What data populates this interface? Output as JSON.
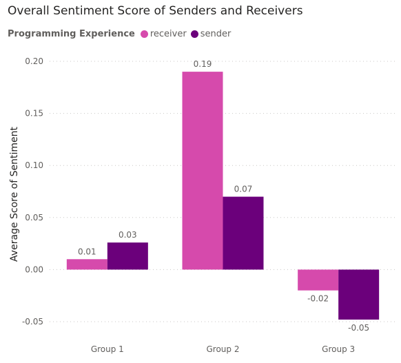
{
  "chart_data": {
    "type": "bar",
    "title": "Overall Sentiment Score of Senders and Receivers",
    "legend_title": "Programming Experience",
    "legend_position": "top-left",
    "xlabel": "",
    "ylabel": "Average Score of Sentiment",
    "categories": [
      "Group 1",
      "Group 2",
      "Group 3"
    ],
    "series": [
      {
        "name": "receiver",
        "color": "#d64aac",
        "values": [
          0.01,
          0.19,
          -0.02
        ],
        "labels": [
          "0.01",
          "0.19",
          "-0.02"
        ]
      },
      {
        "name": "sender",
        "color": "#6b007b",
        "values": [
          0.026,
          0.07,
          -0.048
        ],
        "labels": [
          "0.03",
          "0.07",
          "-0.05"
        ]
      }
    ],
    "ylim": [
      -0.05,
      0.2
    ],
    "yticks": [
      -0.05,
      0.0,
      0.05,
      0.1,
      0.15,
      0.2
    ],
    "ytick_labels": [
      "-0.05",
      "0.00",
      "0.05",
      "0.10",
      "0.15",
      "0.20"
    ],
    "grid": true
  }
}
